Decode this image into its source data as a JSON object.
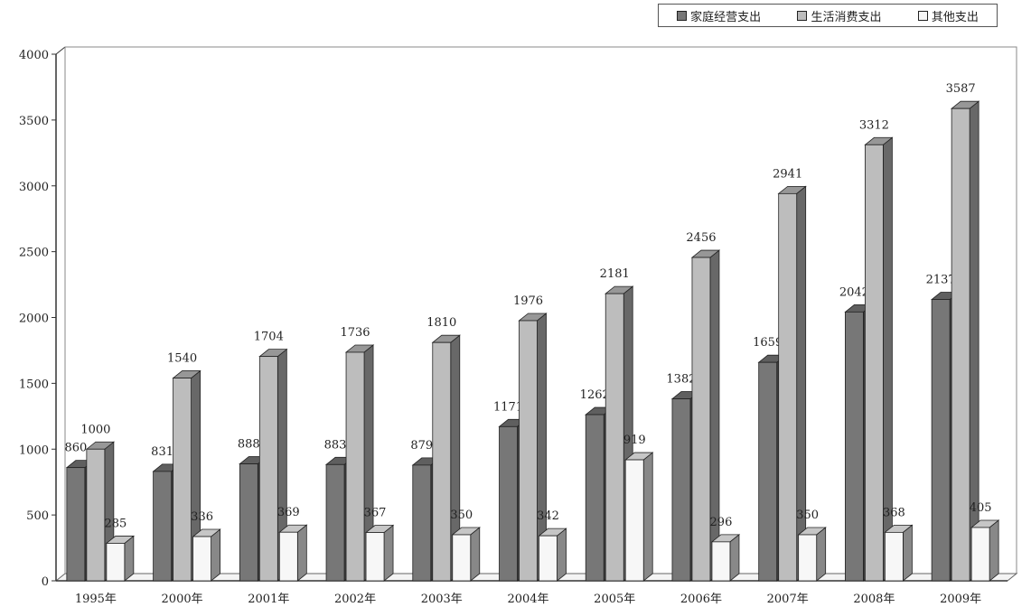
{
  "chart_data": {
    "type": "bar",
    "title": "",
    "xlabel": "",
    "ylabel": "",
    "categories": [
      "1995年",
      "2000年",
      "2001年",
      "2002年",
      "2003年",
      "2004年",
      "2005年",
      "2006年",
      "2007年",
      "2008年",
      "2009年"
    ],
    "series": [
      {
        "name": "家庭经营支出",
        "color": "#777777",
        "values": [
          860,
          831,
          888,
          883,
          879,
          1171,
          1262,
          1382,
          1659,
          2042,
          2137
        ]
      },
      {
        "name": "生活消费支出",
        "color": "#bdbdbd",
        "values": [
          1000,
          1540,
          1704,
          1736,
          1810,
          1976,
          2181,
          2456,
          2941,
          3312,
          3587
        ]
      },
      {
        "name": "其他支出",
        "color": "#f7f7f7",
        "values": [
          285,
          336,
          369,
          367,
          350,
          342,
          919,
          296,
          350,
          368,
          405
        ]
      }
    ],
    "ylim": [
      0,
      4000
    ],
    "yticks": [
      0,
      500,
      1000,
      1500,
      2000,
      2500,
      3000,
      3500,
      4000
    ],
    "legend_position": "top-right",
    "grid": false,
    "style": "3d-bar"
  }
}
